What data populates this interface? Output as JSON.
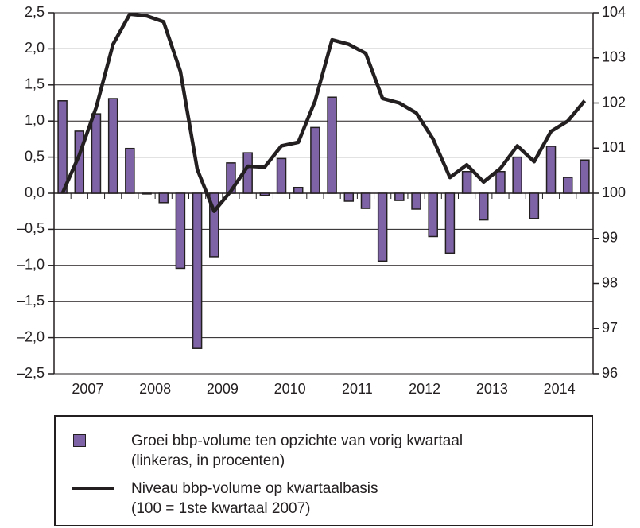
{
  "chart_data": {
    "type": "bar_line",
    "categories": [
      "2007",
      null,
      null,
      null,
      "2008",
      null,
      null,
      null,
      "2009",
      null,
      null,
      null,
      "2010",
      null,
      null,
      null,
      "2011",
      null,
      null,
      null,
      "2012",
      null,
      null,
      null,
      "2013",
      null,
      null,
      null,
      "2014",
      null,
      null,
      null
    ],
    "series": [
      {
        "name": "Groei bbp-volume ten opzichte van vorig kwartaal\n(linkeras, in procenten)",
        "type": "bar",
        "color": "#7e64a6",
        "axis": "y",
        "values": [
          1.28,
          0.86,
          1.1,
          1.31,
          0.62,
          -0.01,
          -0.13,
          -1.04,
          -2.15,
          -0.88,
          0.42,
          0.56,
          -0.03,
          0.48,
          0.08,
          0.91,
          1.33,
          -0.11,
          -0.21,
          -0.94,
          -0.1,
          -0.22,
          -0.6,
          -0.83,
          0.3,
          -0.37,
          0.3,
          0.5,
          -0.35,
          0.65,
          0.22,
          0.46
        ]
      },
      {
        "name": "Niveau bbp-volume op kwartaalbasis\n(100 = 1ste kwartaal 2007)",
        "type": "line",
        "color": "#231f20",
        "axis": "y2",
        "values": [
          100,
          100.85,
          101.9,
          103.3,
          103.97,
          103.93,
          103.8,
          102.7,
          100.53,
          99.6,
          100.05,
          100.6,
          100.58,
          101.05,
          101.13,
          102.05,
          103.4,
          103.3,
          103.1,
          102.1,
          102.0,
          101.78,
          101.2,
          100.35,
          100.63,
          100.25,
          100.55,
          101.05,
          100.7,
          101.37,
          101.6,
          102.05
        ]
      }
    ],
    "ylim": [
      -2.5,
      2.5
    ],
    "yticks": [
      {
        "value": 2.5,
        "label": "2,5"
      },
      {
        "value": 2.0,
        "label": "2,0"
      },
      {
        "value": 1.5,
        "label": "1,5"
      },
      {
        "value": 1.0,
        "label": "1,0"
      },
      {
        "value": 0.5,
        "label": "0,5"
      },
      {
        "value": 0,
        "label": "0,0"
      },
      {
        "value": -0.5,
        "label": "–0,5"
      },
      {
        "value": -1.0,
        "label": "–1,0"
      },
      {
        "value": -1.5,
        "label": "–1,5"
      },
      {
        "value": -2.0,
        "label": "–2,0"
      },
      {
        "value": -2.5,
        "label": "–2,5"
      }
    ],
    "y2lim": [
      96,
      104
    ],
    "y2ticks": [
      96,
      97,
      98,
      99,
      100,
      101,
      102,
      103,
      104
    ],
    "grid": true
  }
}
